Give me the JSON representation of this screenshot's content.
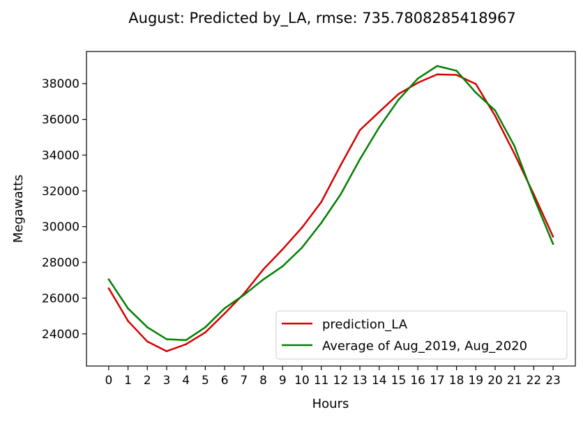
{
  "chart_data": {
    "type": "line",
    "title": "August: Predicted by_LA, rmse: 735.7808285418967",
    "xlabel": "Hours",
    "ylabel": "Megawatts",
    "x": [
      0,
      1,
      2,
      3,
      4,
      5,
      6,
      7,
      8,
      9,
      10,
      11,
      12,
      13,
      14,
      15,
      16,
      17,
      18,
      19,
      20,
      21,
      22,
      23
    ],
    "xticks": [
      "0",
      "1",
      "2",
      "3",
      "4",
      "5",
      "6",
      "7",
      "8",
      "9",
      "10",
      "11",
      "12",
      "13",
      "14",
      "15",
      "16",
      "17",
      "18",
      "19",
      "20",
      "21",
      "22",
      "23"
    ],
    "yticks": [
      "24000",
      "26000",
      "28000",
      "30000",
      "32000",
      "34000",
      "36000",
      "38000"
    ],
    "ytick_values": [
      24000,
      26000,
      28000,
      30000,
      32000,
      34000,
      36000,
      38000
    ],
    "xlim": [
      -1.15,
      24.15
    ],
    "ylim": [
      22200,
      39800
    ],
    "grid": false,
    "legend_position": "lower right",
    "series": [
      {
        "name": "prediction_LA",
        "color": "#d40000",
        "values": [
          26550,
          24720,
          23570,
          23030,
          23420,
          24080,
          25140,
          26250,
          27600,
          28730,
          29940,
          31370,
          33430,
          35400,
          36420,
          37420,
          38050,
          38520,
          38490,
          37980,
          36200,
          34080,
          31810,
          29440
        ]
      },
      {
        "name": "Average of Aug_2019, Aug_2020",
        "color": "#007f00",
        "values": [
          27050,
          25420,
          24370,
          23700,
          23650,
          24370,
          25430,
          26180,
          27040,
          27780,
          28820,
          30200,
          31800,
          33770,
          35560,
          37100,
          38290,
          38990,
          38720,
          37500,
          36500,
          34510,
          31630,
          29030
        ]
      }
    ]
  }
}
